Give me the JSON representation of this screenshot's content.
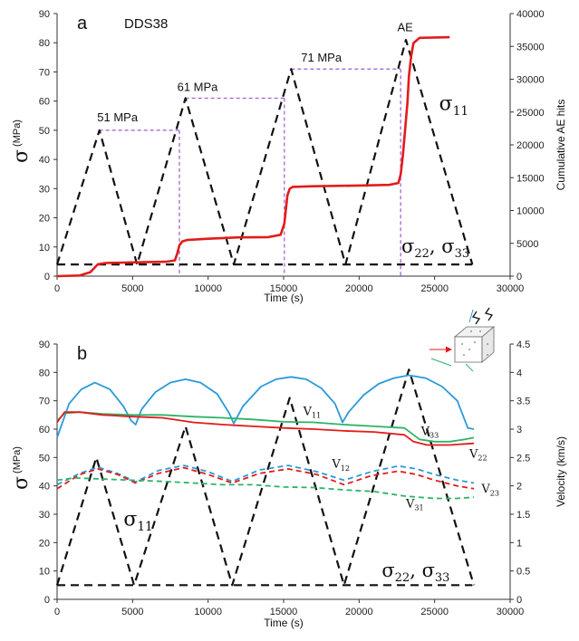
{
  "colors": {
    "stress": "#111111",
    "ae": "#e31b1b",
    "guide": "#9b59d0",
    "v11": "#2b9ad8",
    "v33": "#2db36a",
    "v22": "#e31b1b",
    "v12": "#2b9ad8",
    "v23": "#e31b1b",
    "v31": "#2db36a"
  },
  "chart_data": [
    {
      "type": "line",
      "panel_letter": "a",
      "sample_label": "DDS38",
      "xlabel": "Time (s)",
      "ylabel_symbol": "σ",
      "ylabel_unit": "(MPa)",
      "y2label": "Cumulative AE hits",
      "xlim": [
        0,
        30000
      ],
      "ylim": [
        0,
        90
      ],
      "y2lim": [
        0,
        40000
      ],
      "x_ticks": [
        "0",
        "5000",
        "10000",
        "15000",
        "20000",
        "25000",
        "30000"
      ],
      "y_ticks": [
        "0",
        "10",
        "20",
        "30",
        "40",
        "50",
        "60",
        "70",
        "80",
        "90"
      ],
      "y2_ticks": [
        "0",
        "5000",
        "10000",
        "15000",
        "20000",
        "25000",
        "30000",
        "35000",
        "40000"
      ],
      "stress_labels": {
        "s11": "σ",
        "s11_sub": "11",
        "s2233": "σ",
        "s22_sub": "22",
        "sep": ", σ",
        "s33_sub": "33"
      },
      "peak_labels": [
        {
          "text": "51 MPa",
          "x": 4000,
          "y": 53
        },
        {
          "text": "61 MPa",
          "x": 9300,
          "y": 63.5
        },
        {
          "text": "71 MPa",
          "x": 17500,
          "y": 73.5
        }
      ],
      "ae_label": "AE",
      "series": [
        {
          "key": "s11",
          "style": "dashed",
          "x": [
            0,
            2800,
            5300,
            8500,
            11700,
            15500,
            19100,
            23100,
            27500
          ],
          "y": [
            4,
            50,
            4,
            61,
            4,
            71,
            4,
            81,
            4
          ]
        },
        {
          "key": "s2233",
          "style": "dashed",
          "x": [
            0,
            27500
          ],
          "y": [
            4,
            4
          ]
        },
        {
          "key": "ae",
          "style": "solid",
          "axis": "right",
          "x": [
            0,
            1500,
            2200,
            2700,
            3200,
            5000,
            7200,
            7800,
            7950,
            8100,
            8300,
            8600,
            10000,
            12000,
            14000,
            14800,
            15050,
            15250,
            15400,
            15600,
            17000,
            20000,
            22000,
            22600,
            22750,
            22900,
            23050,
            23200,
            23300,
            23450,
            23600,
            24000,
            26000
          ],
          "y": [
            0,
            100,
            600,
            1800,
            2000,
            2100,
            2200,
            2400,
            3400,
            4700,
            5300,
            5500,
            5700,
            5900,
            5950,
            6300,
            8000,
            12300,
            13300,
            13600,
            13700,
            13800,
            13900,
            14200,
            15500,
            18500,
            22500,
            26500,
            30500,
            33500,
            35500,
            36300,
            36400
          ]
        }
      ],
      "guides": [
        {
          "x": [
            2800,
            8100
          ],
          "y": 50,
          "drop_to_x": 8100
        },
        {
          "x": [
            8500,
            15050
          ],
          "y": 61,
          "drop_to_x": 15050
        },
        {
          "x": [
            15500,
            22750
          ],
          "y": 71,
          "drop_to_x": 22750
        }
      ]
    },
    {
      "type": "line",
      "panel_letter": "b",
      "xlabel": "Time (s)",
      "ylabel_symbol": "σ",
      "ylabel_unit": "(MPa)",
      "y2label": "Velocity  (km/s)",
      "xlim": [
        0,
        30000
      ],
      "ylim": [
        0,
        90
      ],
      "y2lim": [
        0,
        4.5
      ],
      "x_ticks": [
        "0",
        "5000",
        "10000",
        "15000",
        "20000",
        "25000",
        "30000"
      ],
      "y_ticks": [
        "0",
        "10",
        "20",
        "30",
        "40",
        "50",
        "60",
        "70",
        "80",
        "90"
      ],
      "y2_ticks": [
        "0",
        "0.5",
        "1",
        "1.5",
        "2",
        "2.5",
        "3",
        "3.5",
        "4",
        "4.5"
      ],
      "stress_labels": {
        "s11": "σ",
        "s11_sub": "11",
        "s2233": "σ",
        "s22_sub": "22",
        "sep": ", σ",
        "s33_sub": "33"
      },
      "series": [
        {
          "key": "s11",
          "style": "dashed",
          "x": [
            0,
            2600,
            5100,
            8500,
            11600,
            15400,
            19000,
            23300,
            27600
          ],
          "y": [
            5,
            50,
            5,
            61,
            5,
            71,
            5,
            81,
            5
          ]
        },
        {
          "key": "s2233",
          "style": "dashed",
          "x": [
            0,
            27500
          ],
          "y": [
            5,
            5
          ]
        },
        {
          "key": "v11",
          "name": "V",
          "sub": "11",
          "style": "solid",
          "axis": "right",
          "label_at": [
            16300,
            3.25
          ],
          "x": [
            0,
            800,
            1600,
            2500,
            3500,
            4400,
            4900,
            5200,
            5600,
            6500,
            7500,
            8500,
            9500,
            10600,
            11400,
            11700,
            12300,
            13500,
            14500,
            15500,
            16500,
            17500,
            18400,
            18900,
            19300,
            20300,
            21300,
            22300,
            23300,
            24400,
            25500,
            26500,
            27200,
            27600
          ],
          "y": [
            2.85,
            3.45,
            3.7,
            3.82,
            3.7,
            3.4,
            3.15,
            3.08,
            3.35,
            3.65,
            3.82,
            3.88,
            3.82,
            3.62,
            3.28,
            3.1,
            3.4,
            3.75,
            3.88,
            3.92,
            3.88,
            3.72,
            3.45,
            3.12,
            3.3,
            3.6,
            3.8,
            3.9,
            3.95,
            3.9,
            3.75,
            3.5,
            3.02,
            3.0
          ]
        },
        {
          "key": "v33",
          "name": "V",
          "sub": "33",
          "style": "solid",
          "axis": "right",
          "label_at": [
            24100,
            2.9
          ],
          "x": [
            0,
            500,
            1500,
            3000,
            5000,
            7000,
            9000,
            11000,
            13000,
            15000,
            17000,
            19000,
            21000,
            23000,
            24000,
            25000,
            26000,
            27000,
            27600
          ],
          "y": [
            3.15,
            3.28,
            3.3,
            3.27,
            3.25,
            3.25,
            3.22,
            3.2,
            3.17,
            3.13,
            3.12,
            3.08,
            3.05,
            3.02,
            2.82,
            2.78,
            2.78,
            2.82,
            2.85
          ]
        },
        {
          "key": "v22",
          "name": "V",
          "sub": "22",
          "style": "solid",
          "axis": "right",
          "label_at": [
            27300,
            2.5
          ],
          "x": [
            0,
            500,
            1500,
            3000,
            5000,
            7000,
            9000,
            11000,
            13000,
            15000,
            17000,
            19000,
            21000,
            23000,
            23600,
            24500,
            26000,
            27600
          ],
          "y": [
            3.12,
            3.3,
            3.3,
            3.25,
            3.22,
            3.2,
            3.12,
            3.08,
            3.05,
            3.02,
            3.0,
            2.97,
            2.95,
            2.9,
            2.78,
            2.72,
            2.72,
            2.75
          ]
        },
        {
          "key": "v12",
          "name": "V",
          "sub": "12",
          "style": "dashed",
          "axis": "right",
          "label_at": [
            18200,
            2.32
          ],
          "x": [
            0,
            1500,
            2700,
            4000,
            5200,
            6700,
            8400,
            10000,
            11600,
            13400,
            15300,
            17200,
            19000,
            20800,
            22600,
            23800,
            25000,
            26500,
            27600
          ],
          "y": [
            2.02,
            2.22,
            2.33,
            2.22,
            2.07,
            2.27,
            2.36,
            2.25,
            2.08,
            2.28,
            2.36,
            2.25,
            2.1,
            2.25,
            2.35,
            2.3,
            2.2,
            2.1,
            2.05
          ]
        },
        {
          "key": "v23",
          "name": "V",
          "sub": "23",
          "style": "dashed",
          "axis": "right",
          "label_at": [
            28100,
            1.88
          ],
          "x": [
            0,
            1500,
            2700,
            4000,
            5200,
            6700,
            8400,
            10000,
            11600,
            13400,
            15300,
            17200,
            19000,
            20800,
            22600,
            23800,
            25000,
            26500,
            27600
          ],
          "y": [
            1.95,
            2.2,
            2.3,
            2.2,
            2.05,
            2.22,
            2.32,
            2.2,
            2.05,
            2.22,
            2.3,
            2.2,
            2.02,
            2.18,
            2.26,
            2.2,
            2.1,
            2.0,
            1.95
          ]
        },
        {
          "key": "v31",
          "name": "V",
          "sub": "31",
          "style": "dashed",
          "axis": "right",
          "label_at": [
            23100,
            1.62
          ],
          "x": [
            0,
            1200,
            3000,
            5000,
            7000,
            9000,
            11000,
            13000,
            15000,
            17000,
            19000,
            21000,
            23000,
            25000,
            26500,
            27600
          ],
          "y": [
            2.1,
            2.14,
            2.12,
            2.1,
            2.08,
            2.05,
            2.02,
            2.02,
            1.98,
            1.97,
            1.93,
            1.9,
            1.82,
            1.78,
            1.78,
            1.8
          ]
        }
      ]
    }
  ]
}
